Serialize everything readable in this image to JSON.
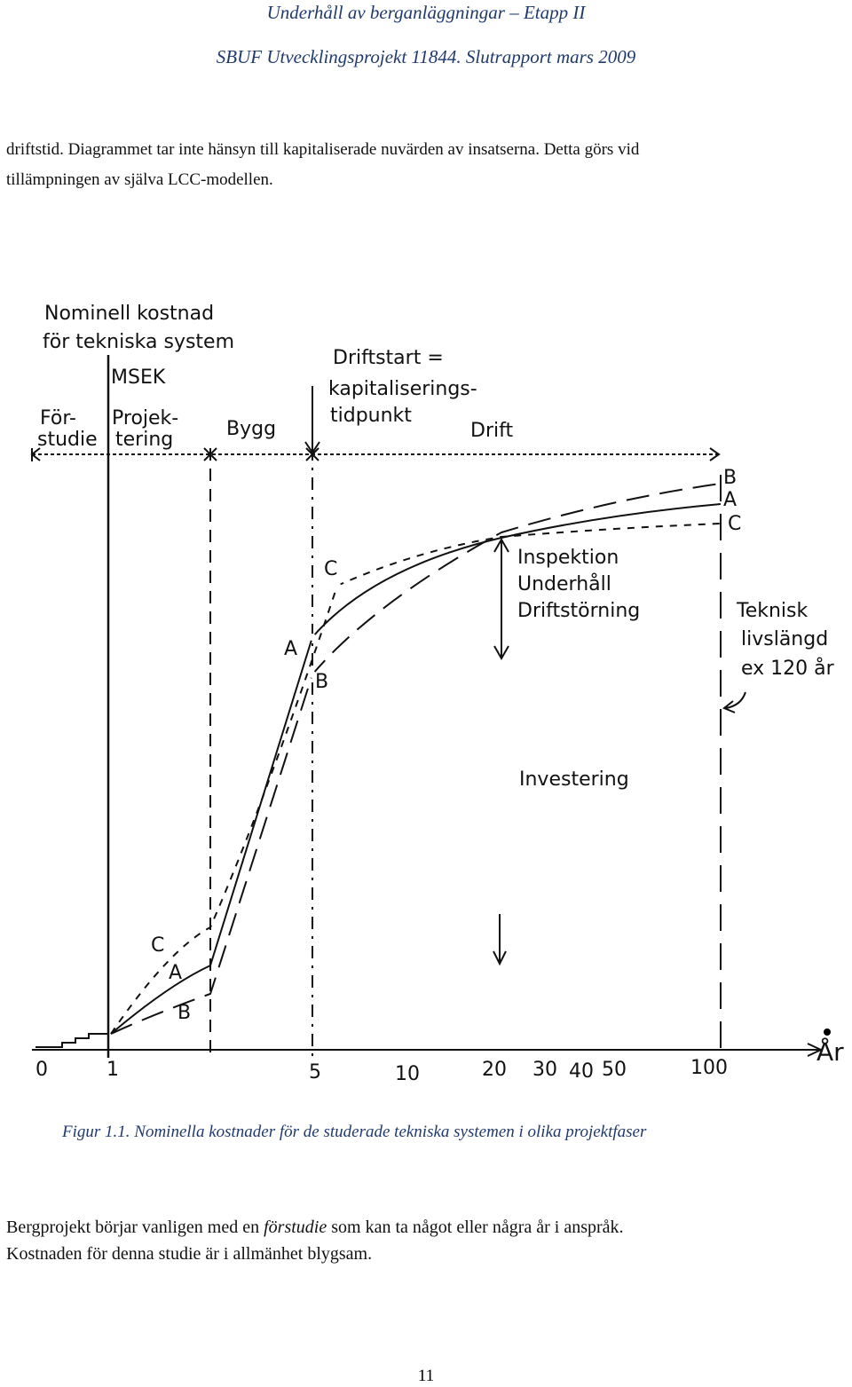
{
  "header": {
    "line1": "Underhåll av berganläggningar – Etapp II",
    "line2": "SBUF Utvecklingsprojekt 11844. Slutrapport mars 2009"
  },
  "intro": {
    "lines": [
      "driftstid. Diagrammet tar inte hänsyn till kapitaliserade nuvärden av insatserna. Detta görs vid",
      "tillämpningen av själva LCC-modellen."
    ]
  },
  "figure": {
    "y_axis_label": {
      "lines": [
        "Nominell kostnad",
        "för tekniska system"
      ]
    },
    "unit": "MSEK",
    "phases": {
      "forstudie": [
        "För-",
        "studie"
      ],
      "projektering": [
        "Projek-",
        "tering"
      ],
      "bygg": "Bygg",
      "driftstart": [
        "Driftstart =",
        "kapitaliserings-",
        "tidpunkt"
      ],
      "drift": "Drift"
    },
    "end_letters": [
      "B",
      "A",
      "C"
    ],
    "drift_note": [
      "Inspektion",
      "Underhåll",
      "Driftstörning"
    ],
    "life_note": [
      "Teknisk",
      "livslängd",
      "ex 120 år"
    ],
    "investering": "Investering",
    "mid_letters": [
      "C",
      "A",
      "B"
    ],
    "low_letters": [
      "C",
      "A",
      "B"
    ],
    "x_ticks": [
      "0",
      "1",
      "5",
      "10",
      "20",
      "30",
      "40",
      "50",
      "100"
    ],
    "x_axis_label": "År"
  },
  "caption": "Figur 1.1. Nominella kostnader för de studerade tekniska systemen i olika projektfaser",
  "body": {
    "part1": "Bergprojekt börjar vanligen med en ",
    "italic": "förstudie",
    "part2": " som kan ta något eller några år i anspråk.",
    "line2": "Kostnaden för denna studie är i allmänhet blygsam."
  },
  "page_number": "11"
}
